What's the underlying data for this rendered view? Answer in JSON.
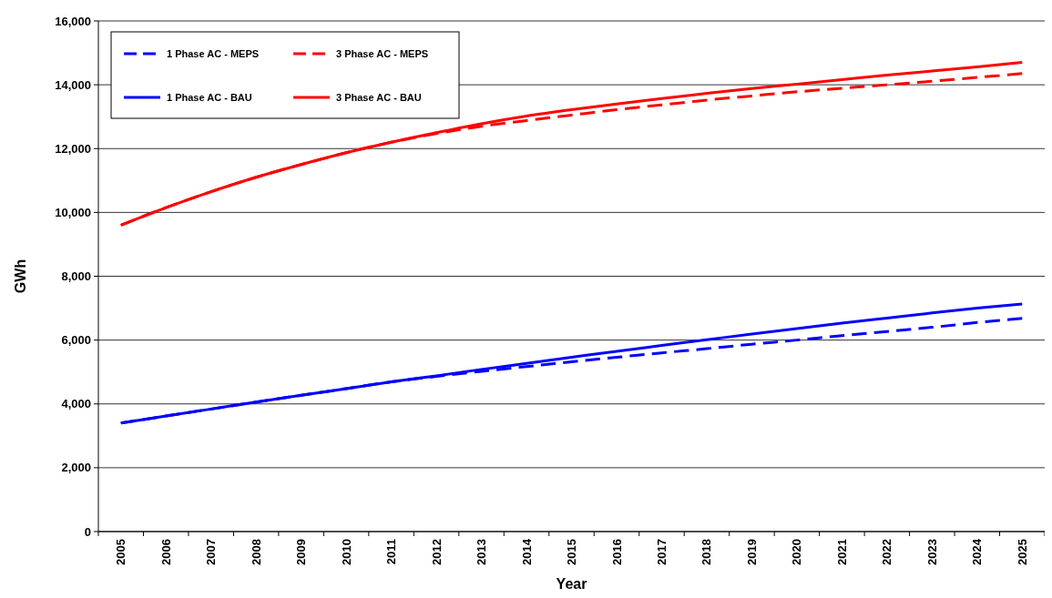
{
  "chart_data": {
    "type": "line",
    "xlabel": "Year",
    "ylabel": "GWh",
    "categories": [
      "2005",
      "2006",
      "2007",
      "2008",
      "2009",
      "2010",
      "2011",
      "2012",
      "2013",
      "2014",
      "2015",
      "2016",
      "2017",
      "2018",
      "2019",
      "2020",
      "2021",
      "2022",
      "2023",
      "2024",
      "2025"
    ],
    "ylim": [
      0,
      16000
    ],
    "yticks": [
      {
        "value": 0,
        "label": "0"
      },
      {
        "value": 2000,
        "label": "2,000"
      },
      {
        "value": 4000,
        "label": "4,000"
      },
      {
        "value": 6000,
        "label": "6,000"
      },
      {
        "value": 8000,
        "label": "8,000"
      },
      {
        "value": 10000,
        "label": "10,000"
      },
      {
        "value": 12000,
        "label": "12,000"
      },
      {
        "value": 14000,
        "label": "14,000"
      },
      {
        "value": 16000,
        "label": "16,000"
      }
    ],
    "grid": "y",
    "legend": "top left",
    "marker": "none",
    "series": [
      {
        "name": "1 Phase AC - MEPS",
        "color": "#0000ff",
        "line_style": "dashed",
        "values": [
          3400,
          3620,
          3840,
          4060,
          4270,
          4480,
          4690,
          4860,
          5020,
          5170,
          5320,
          5460,
          5600,
          5730,
          5870,
          6000,
          6140,
          6270,
          6400,
          6550,
          6680
        ]
      },
      {
        "name": "3 Phase AC - MEPS",
        "color": "#ff0000",
        "line_style": "dashed",
        "values": [
          9600,
          10150,
          10650,
          11100,
          11500,
          11870,
          12200,
          12470,
          12700,
          12880,
          13050,
          13220,
          13370,
          13520,
          13650,
          13780,
          13890,
          14000,
          14110,
          14230,
          14350
        ]
      },
      {
        "name": "1 Phase AC - BAU",
        "color": "#0000ff",
        "line_style": "solid",
        "values": [
          3400,
          3620,
          3840,
          4060,
          4270,
          4480,
          4690,
          4880,
          5080,
          5270,
          5460,
          5650,
          5830,
          6010,
          6190,
          6360,
          6530,
          6690,
          6850,
          7000,
          7130
        ]
      },
      {
        "name": "3 Phase AC - BAU",
        "color": "#ff0000",
        "line_style": "solid",
        "values": [
          9600,
          10150,
          10650,
          11100,
          11500,
          11870,
          12200,
          12500,
          12780,
          13020,
          13220,
          13400,
          13570,
          13730,
          13880,
          14020,
          14160,
          14300,
          14430,
          14560,
          14700
        ]
      }
    ]
  }
}
